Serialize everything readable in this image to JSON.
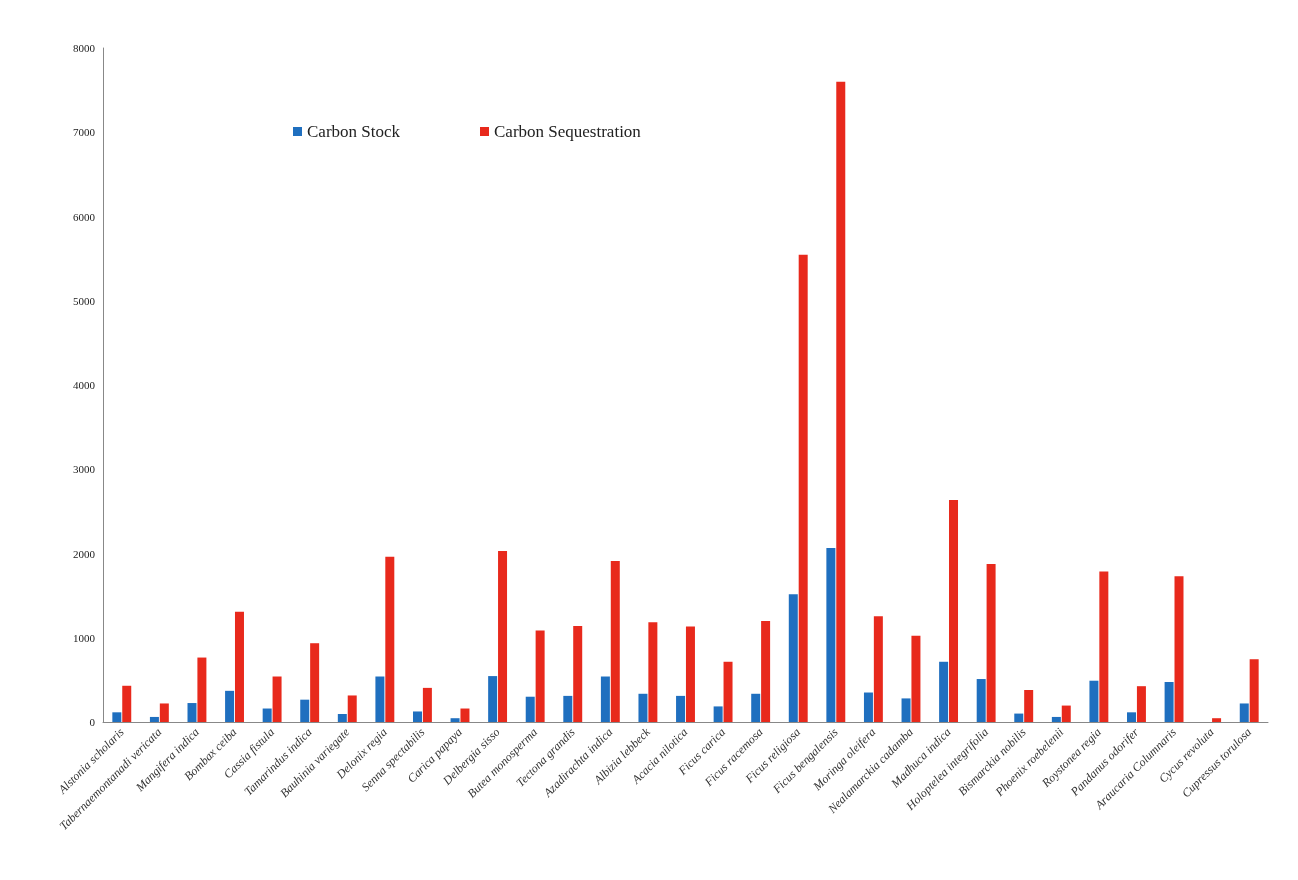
{
  "chart_data": {
    "type": "bar",
    "categories": [
      "Alstonia scholaris",
      "Tabernaemontanadi vericata",
      "Mangifera indica",
      "Bombax ceiba",
      "Cassia fistula",
      "Tamarindus indica",
      "Bauhinia variegate",
      "Delonix regia",
      "Senna spectabilis",
      "Carica papaya",
      "Delbergia sisso",
      "Butea monosperma",
      "Tectona grandis",
      "Azadirachta indica",
      "Albizia lebbeck",
      "Acacia nilotica",
      "Ficus carica",
      "Ficus racemosa",
      "Ficus religiosa",
      "Ficus bengalensis",
      "Moringa oleifera",
      "Nealamarckia cadamba",
      "Madhuca indica",
      "Holoptelea integrifolia",
      "Bismarckia nobilis",
      "Phoenix roebelenii",
      "Roystonea regia",
      "Pandanus odorifer",
      "Araucaria Columnaris",
      "Cycus revoluta",
      "Cupressus torulosa"
    ],
    "series": [
      {
        "name": "Carbon Stock",
        "color": "#1f6fbf",
        "values": [
          115,
          60,
          225,
          370,
          160,
          265,
          95,
          540,
          125,
          45,
          545,
          300,
          310,
          540,
          335,
          310,
          185,
          335,
          1515,
          2065,
          350,
          280,
          715,
          510,
          100,
          60,
          490,
          115,
          475,
          0,
          220
        ]
      },
      {
        "name": "Carbon Sequestration",
        "color": "#e8291c",
        "values": [
          430,
          220,
          765,
          1310,
          540,
          935,
          315,
          1960,
          405,
          160,
          2030,
          1085,
          1140,
          1910,
          1185,
          1135,
          715,
          1200,
          5545,
          7600,
          1255,
          1025,
          2635,
          1875,
          380,
          195,
          1785,
          425,
          1730,
          45,
          745
        ]
      }
    ],
    "ylim": [
      0,
      8000
    ],
    "yticks": [
      0,
      1000,
      2000,
      3000,
      4000,
      5000,
      6000,
      7000,
      8000
    ],
    "grid": false,
    "legend": "top"
  }
}
